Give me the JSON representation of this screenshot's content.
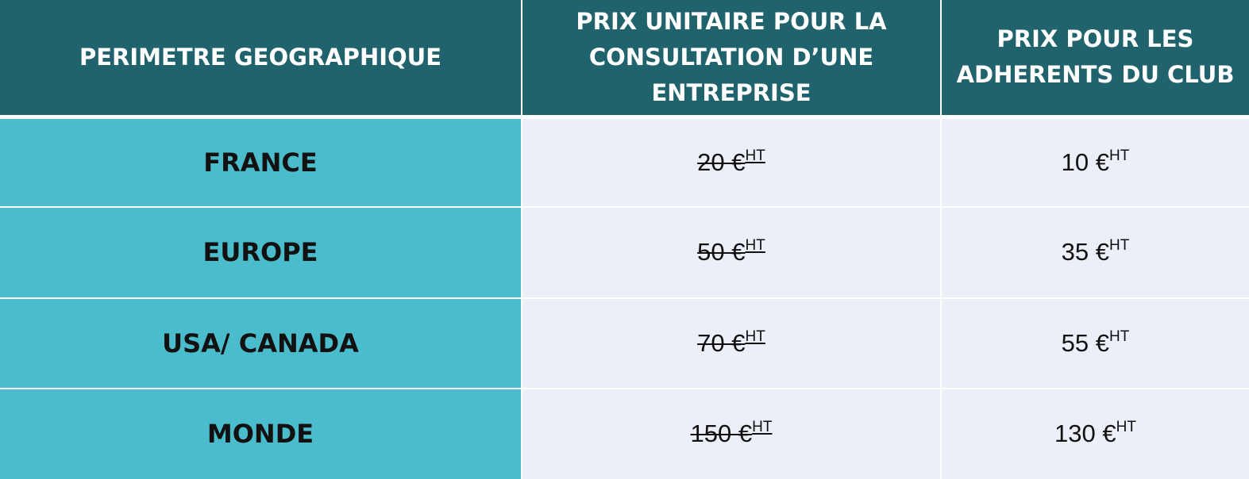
{
  "table": {
    "headers": [
      "PERIMETRE GEOGRAPHIQUE",
      "PRIX UNITAIRE POUR LA\nCONSULTATION D’UNE\nENTREPRISE",
      "PRIX POUR LES\nADHERENTS  DU CLUB"
    ],
    "price_suffix": "HT",
    "rows": [
      {
        "region": "FRANCE",
        "unit_price": "20 €",
        "member_price": "10 €"
      },
      {
        "region": "EUROPE",
        "unit_price": "50 €",
        "member_price": "35 €"
      },
      {
        "region": "USA/ CANADA",
        "unit_price": "70 €",
        "member_price": "55 €"
      },
      {
        "region": "MONDE",
        "unit_price": "150 €",
        "member_price": "130 €"
      }
    ]
  },
  "colors": {
    "header_bg": "#20636d",
    "region_bg": "#4bbccc",
    "price_bg": "#eceef8"
  }
}
